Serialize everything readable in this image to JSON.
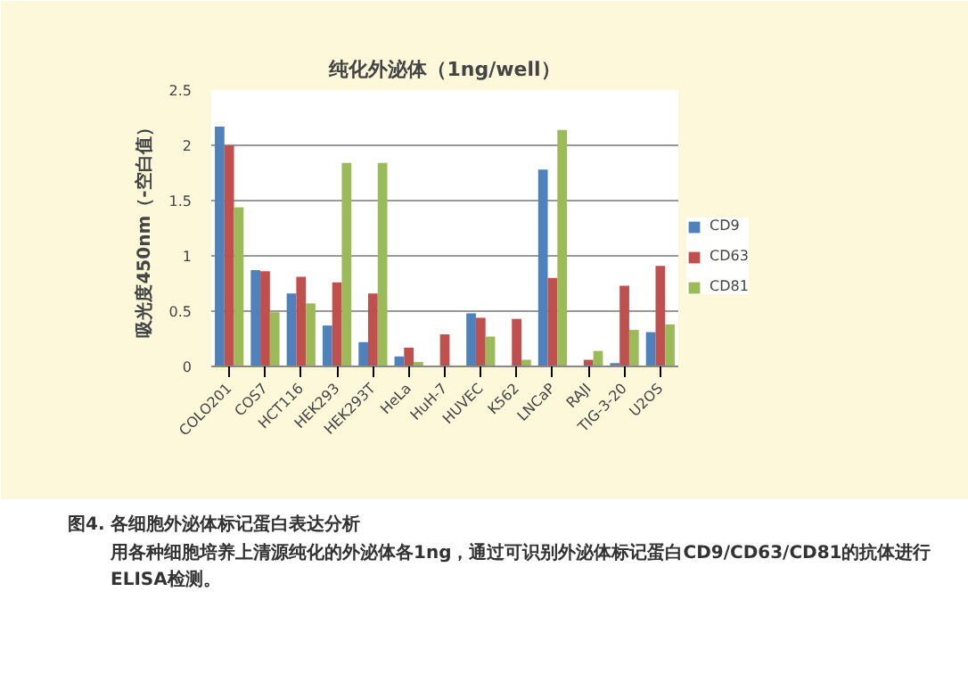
{
  "chart_data": {
    "type": "bar",
    "title": "纯化外泌体（1ng/well）",
    "ylabel": "吸光度450nm（-空白值）",
    "categories": [
      "COLO201",
      "COS7",
      "HCT116",
      "HEK293",
      "HEK293T",
      "HeLa",
      "HuH-7",
      "HUVEC",
      "K562",
      "LNCaP",
      "RAJI",
      "TIG-3-20",
      "U2OS"
    ],
    "series": [
      {
        "name": "CD9",
        "color": "#4f81bd",
        "values": [
          2.17,
          0.87,
          0.66,
          0.37,
          0.22,
          0.09,
          0,
          0.48,
          0,
          1.78,
          0,
          0.03,
          0.31
        ]
      },
      {
        "name": "CD63",
        "color": "#c0504d",
        "values": [
          2.0,
          0.86,
          0.81,
          0.76,
          0.66,
          0.17,
          0.29,
          0.44,
          0.43,
          0.8,
          0.06,
          0.73,
          0.91
        ]
      },
      {
        "name": "CD81",
        "color": "#9bbb59",
        "values": [
          1.44,
          0.49,
          0.57,
          1.84,
          1.84,
          0.04,
          null,
          0.27,
          0.06,
          2.14,
          0.14,
          0.33,
          0.38
        ]
      }
    ],
    "ylim": [
      0,
      2.5
    ],
    "yticks": [
      0,
      0.5,
      1,
      1.5,
      2,
      2.5
    ],
    "grid": "y",
    "legend": "right",
    "annotations": [
      "图4.    各细胞外泌体标记蛋白表达分析",
      "用各种细胞培养上清源纯化的外泌体各1ng，通过可识别外泌体标记蛋白CD9/CD63/CD81的抗体进行ELISA检测。"
    ]
  }
}
